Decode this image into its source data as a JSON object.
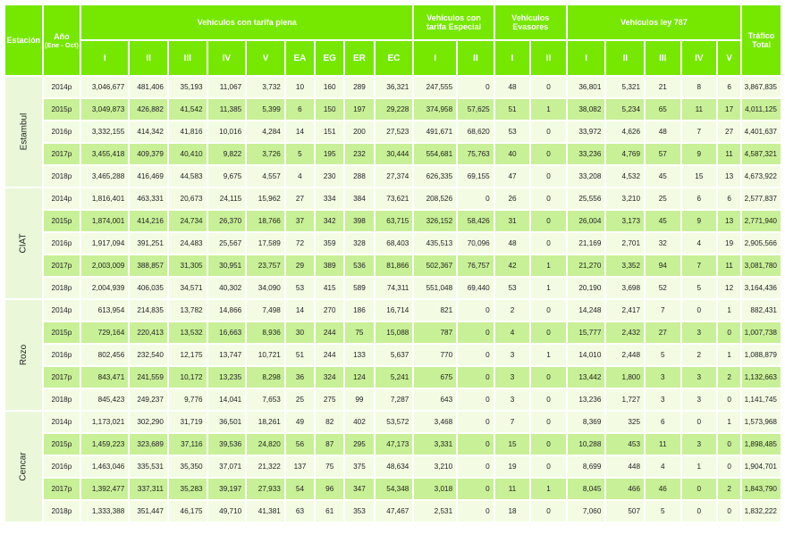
{
  "headers": {
    "estacion": "Estación",
    "anio_line1": "Año",
    "anio_line2": "(Ene - Oct)",
    "plena": "Vehículos con tarifa plena",
    "especial_line1": "Vehículos con",
    "especial_line2": "tarifa Especial",
    "evasores_line1": "Vehículos",
    "evasores_line2": "Evasores",
    "ley787": "Vehículos ley 787",
    "trafico_line1": "Tráfico",
    "trafico_line2": "Total",
    "sub": [
      "I",
      "II",
      "III",
      "IV",
      "V",
      "EA",
      "EG",
      "ER",
      "EC",
      "I",
      "II",
      "I",
      "II",
      "I",
      "II",
      "III",
      "IV",
      "V"
    ]
  },
  "stations": [
    {
      "name": "Estambul",
      "rows": [
        {
          "year": "2014p",
          "v": [
            "3,046,677",
            "481,406",
            "35,193",
            "11,067",
            "3,732",
            "10",
            "160",
            "289",
            "36,321",
            "247,555",
            "0",
            "48",
            "0",
            "36,801",
            "5,321",
            "21",
            "8",
            "6",
            "3,867,835"
          ]
        },
        {
          "year": "2015p",
          "v": [
            "3,049,873",
            "426,882",
            "41,542",
            "11,385",
            "5,399",
            "6",
            "150",
            "197",
            "29,228",
            "374,958",
            "57,625",
            "51",
            "1",
            "38,082",
            "5,234",
            "65",
            "11",
            "17",
            "4,011,125"
          ]
        },
        {
          "year": "2016p",
          "v": [
            "3,332,155",
            "414,342",
            "41,816",
            "10,016",
            "4,284",
            "14",
            "151",
            "200",
            "27,523",
            "491,671",
            "68,620",
            "53",
            "0",
            "33,972",
            "4,626",
            "48",
            "7",
            "27",
            "4,401,637"
          ]
        },
        {
          "year": "2017p",
          "v": [
            "3,455,418",
            "409,379",
            "40,410",
            "9,822",
            "3,726",
            "5",
            "195",
            "232",
            "30,444",
            "554,681",
            "75,763",
            "40",
            "0",
            "33,236",
            "4,769",
            "57",
            "9",
            "11",
            "4,587,321"
          ]
        },
        {
          "year": "2018p",
          "v": [
            "3,465,288",
            "416,469",
            "44,583",
            "9,675",
            "4,557",
            "4",
            "230",
            "288",
            "27,374",
            "626,335",
            "69,155",
            "47",
            "0",
            "33,208",
            "4,532",
            "45",
            "15",
            "13",
            "4,673,922"
          ]
        }
      ]
    },
    {
      "name": "CIAT",
      "rows": [
        {
          "year": "2014p",
          "v": [
            "1,816,401",
            "463,331",
            "20,673",
            "24,115",
            "15,962",
            "27",
            "334",
            "384",
            "73,621",
            "208,526",
            "0",
            "26",
            "0",
            "25,556",
            "3,210",
            "25",
            "6",
            "6",
            "2,577,837"
          ]
        },
        {
          "year": "2015p",
          "v": [
            "1,874,001",
            "414,216",
            "24,734",
            "26,370",
            "18,766",
            "37",
            "342",
            "398",
            "63,715",
            "326,152",
            "58,426",
            "31",
            "0",
            "26,004",
            "3,173",
            "45",
            "9",
            "13",
            "2,771,940"
          ]
        },
        {
          "year": "2016p",
          "v": [
            "1,917,094",
            "391,251",
            "24,483",
            "25,567",
            "17,589",
            "72",
            "359",
            "328",
            "68,403",
            "435,513",
            "70,096",
            "48",
            "0",
            "21,169",
            "2,701",
            "32",
            "4",
            "19",
            "2,905,566"
          ]
        },
        {
          "year": "2017p",
          "v": [
            "2,003,009",
            "388,857",
            "31,305",
            "30,951",
            "23,757",
            "29",
            "389",
            "536",
            "81,866",
            "502,367",
            "76,757",
            "42",
            "1",
            "21,270",
            "3,352",
            "94",
            "7",
            "11",
            "3,081,780"
          ]
        },
        {
          "year": "2018p",
          "v": [
            "2,004,939",
            "406,035",
            "34,571",
            "40,302",
            "34,090",
            "53",
            "415",
            "589",
            "74,311",
            "551,048",
            "69,440",
            "53",
            "1",
            "20,190",
            "3,698",
            "52",
            "5",
            "12",
            "3,164,436"
          ]
        }
      ]
    },
    {
      "name": "Rozo",
      "rows": [
        {
          "year": "2014p",
          "v": [
            "613,954",
            "214,835",
            "13,782",
            "14,866",
            "7,498",
            "14",
            "270",
            "186",
            "16,714",
            "821",
            "0",
            "2",
            "0",
            "14,248",
            "2,417",
            "7",
            "0",
            "1",
            "882,431"
          ]
        },
        {
          "year": "2015p",
          "v": [
            "729,164",
            "220,413",
            "13,532",
            "16,663",
            "8,936",
            "30",
            "244",
            "75",
            "15,088",
            "787",
            "0",
            "4",
            "0",
            "15,777",
            "2,432",
            "27",
            "3",
            "0",
            "1,007,738"
          ]
        },
        {
          "year": "2016p",
          "v": [
            "802,456",
            "232,540",
            "12,175",
            "13,747",
            "10,721",
            "51",
            "244",
            "133",
            "5,637",
            "770",
            "0",
            "3",
            "1",
            "14,010",
            "2,448",
            "5",
            "2",
            "1",
            "1,088,879"
          ]
        },
        {
          "year": "2017p",
          "v": [
            "843,471",
            "241,559",
            "10,172",
            "13,235",
            "8,298",
            "36",
            "324",
            "124",
            "5,241",
            "675",
            "0",
            "3",
            "0",
            "13,442",
            "1,800",
            "3",
            "3",
            "2",
            "1,132,663"
          ]
        },
        {
          "year": "2018p",
          "v": [
            "845,423",
            "249,237",
            "9,776",
            "14,041",
            "7,653",
            "25",
            "275",
            "99",
            "7,287",
            "643",
            "0",
            "3",
            "0",
            "13,236",
            "1,727",
            "3",
            "3",
            "0",
            "1,141,745"
          ]
        }
      ]
    },
    {
      "name": "Cencar",
      "rows": [
        {
          "year": "2014p",
          "v": [
            "1,173,021",
            "302,290",
            "31,719",
            "36,501",
            "18,261",
            "49",
            "82",
            "402",
            "53,572",
            "3,468",
            "0",
            "7",
            "0",
            "8,369",
            "325",
            "6",
            "0",
            "1",
            "1,573,968"
          ]
        },
        {
          "year": "2015p",
          "v": [
            "1,459,223",
            "323,689",
            "37,116",
            "39,536",
            "24,820",
            "56",
            "87",
            "295",
            "47,173",
            "3,331",
            "0",
            "15",
            "0",
            "10,288",
            "453",
            "11",
            "3",
            "0",
            "1,898,485"
          ]
        },
        {
          "year": "2016p",
          "v": [
            "1,463,046",
            "335,531",
            "35,350",
            "37,071",
            "21,322",
            "137",
            "75",
            "375",
            "48,634",
            "3,210",
            "0",
            "19",
            "0",
            "8,699",
            "448",
            "4",
            "1",
            "0",
            "1,904,701"
          ]
        },
        {
          "year": "2017p",
          "v": [
            "1,392,477",
            "337,311",
            "35,283",
            "39,197",
            "27,933",
            "54",
            "96",
            "347",
            "54,348",
            "3,018",
            "0",
            "11",
            "1",
            "8,045",
            "466",
            "46",
            "0",
            "2",
            "1,843,790"
          ]
        },
        {
          "year": "2018p",
          "v": [
            "1,333,388",
            "351,447",
            "46,175",
            "49,710",
            "41,381",
            "63",
            "61",
            "353",
            "47,467",
            "2,531",
            "0",
            "18",
            "0",
            "7,060",
            "507",
            "5",
            "0",
            "0",
            "1,832,222"
          ]
        }
      ]
    }
  ]
}
